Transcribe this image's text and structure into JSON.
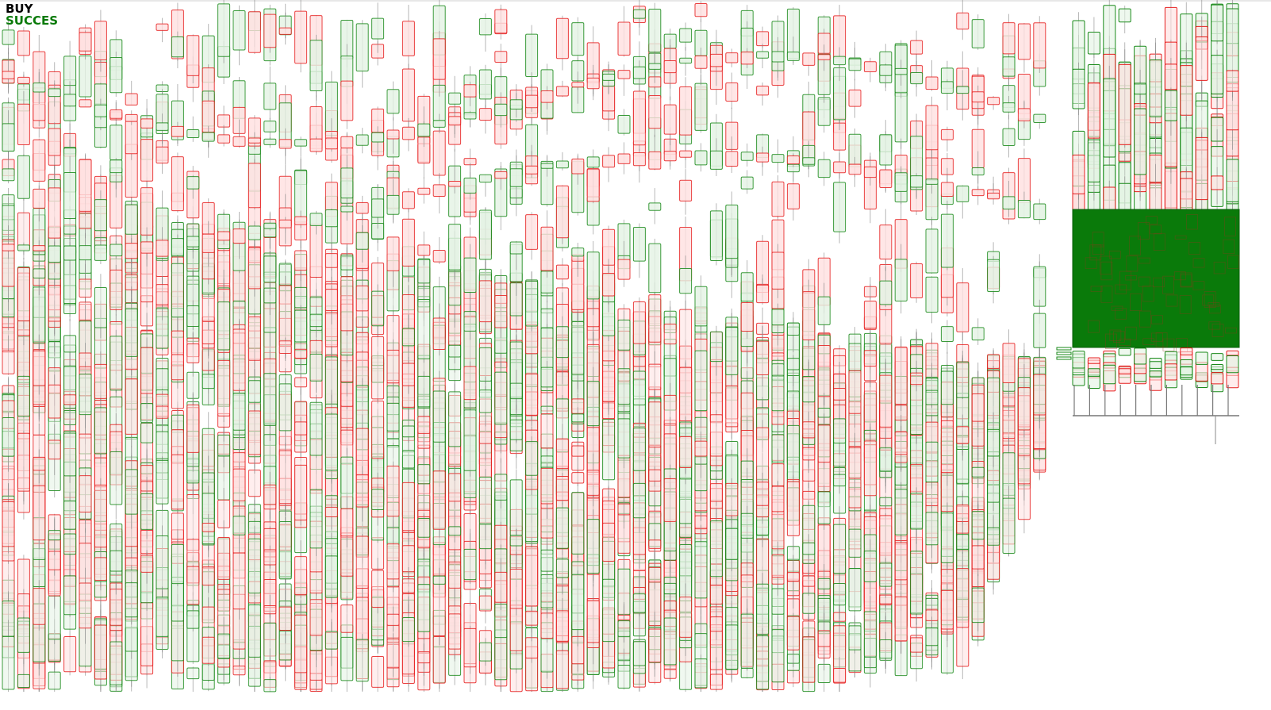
{
  "signal": {
    "action": "BUY",
    "status": "SUCCES",
    "action_color": "#000000",
    "status_color": "#0a7a0a"
  },
  "chart_data": {
    "type": "candlestick",
    "title": "",
    "xlabel": "",
    "ylabel": "",
    "grid": false,
    "legend": "none",
    "bullish_color": "#1a8a1a",
    "bearish_color": "#e62020",
    "bullish_fill": "#e3f3e3",
    "bearish_fill": "#ffe0e0",
    "highlight_color": "#0a7a0a",
    "wick_color": "#8a8a8a",
    "seed": 20231
  }
}
